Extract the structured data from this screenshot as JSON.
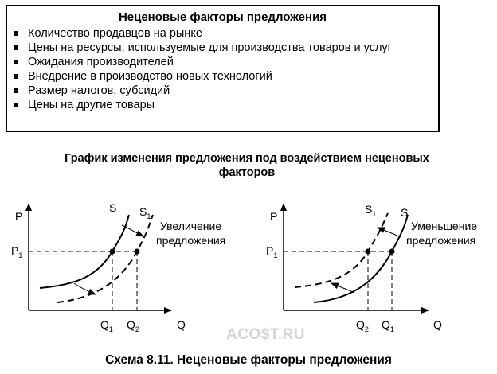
{
  "factors_box": {
    "title": "Неценовые факторы предложения",
    "items": [
      "Количество продавцов на рынке",
      "Цены на ресурсы, используемые для производства товаров и услуг",
      "Ожидания производителей",
      "Внедрение в производство новых технологий",
      "Размер налогов, субсидий",
      "Цены на другие товары"
    ]
  },
  "graph_title": "График изменения предложения под воздействием неценовых факторов",
  "left_graph": {
    "y_axis": "P",
    "x_axis": "Q",
    "price": "P",
    "price_sub": "1",
    "curve_s": "S",
    "curve_s1": "S",
    "curve_s1_sub": "1",
    "q_a": "Q",
    "q_a_sub": "1",
    "q_b": "Q",
    "q_b_sub": "2",
    "note_line1": "Увеличение",
    "note_line2": "предложения"
  },
  "right_graph": {
    "y_axis": "P",
    "x_axis": "Q",
    "price": "P",
    "price_sub": "1",
    "curve_s": "S",
    "curve_s1": "S",
    "curve_s1_sub": "1",
    "q_a": "Q",
    "q_a_sub": "2",
    "q_b": "Q",
    "q_b_sub": "1",
    "note_line1": "Уменьшение",
    "note_line2": "предложения"
  },
  "watermark": "ACO$T.RU",
  "caption": "Схема 8.11. Неценовые факторы предложения"
}
